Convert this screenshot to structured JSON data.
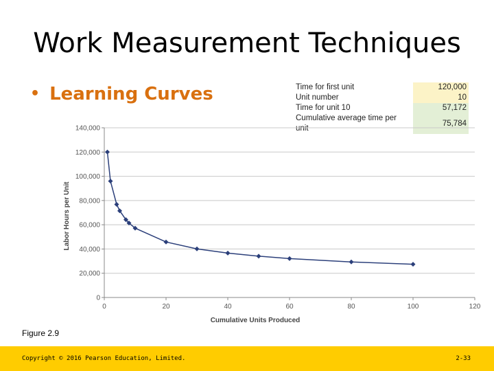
{
  "slide": {
    "title": "Work Measurement Techniques",
    "bullet": "Learning Curves",
    "figure_label": "Figure 2.9",
    "footer_copyright": "Copyright © 2016 Pearson Education, Limited.",
    "footer_page": "2-33"
  },
  "info_table": [
    {
      "label": "Time for first unit",
      "value": "120,000"
    },
    {
      "label": "Unit number",
      "value": "10"
    },
    {
      "label": "Time for unit 10",
      "value": "57,172"
    },
    {
      "label": "Cumulative average time per unit",
      "value": "75,784"
    }
  ],
  "colors": {
    "accent": "#d9700f",
    "footer": "#ffcc00",
    "series": "#2b3f7a",
    "table_yellow": "#fcf3c7",
    "table_green": "#e3efd6"
  },
  "chart_data": {
    "type": "line",
    "title": "",
    "xlabel": "Cumulative Units Produced",
    "ylabel": "Labor Hours per Unit",
    "xlim": [
      0,
      120
    ],
    "ylim": [
      0,
      140000
    ],
    "x_ticks": [
      "0",
      "20",
      "40",
      "60",
      "80",
      "100",
      "120"
    ],
    "y_ticks": [
      "0",
      "20,000",
      "40,000",
      "60,000",
      "80,000",
      "100,000",
      "120,000",
      "140,000"
    ],
    "grid": "horizontal",
    "series": [
      {
        "x": [
          1,
          2,
          4,
          5,
          7,
          8,
          10,
          20,
          30,
          40,
          50,
          60,
          80,
          100
        ],
        "values": [
          120000,
          96000,
          76800,
          71500,
          64200,
          61400,
          57200,
          45800,
          40100,
          36600,
          34100,
          32100,
          29300,
          27400
        ]
      }
    ]
  }
}
